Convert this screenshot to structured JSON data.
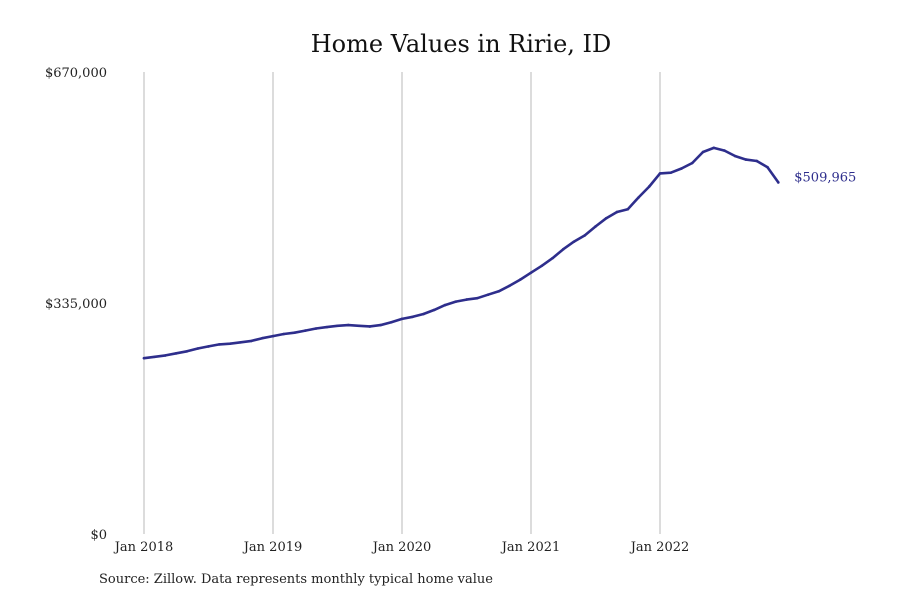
{
  "chart_data": {
    "type": "line",
    "title": "Home Values in Ririe, ID",
    "xlabel": "",
    "ylabel": "",
    "x_tick_labels": [
      "Jan 2018",
      "Jan 2019",
      "Jan 2020",
      "Jan 2021",
      "Jan 2022"
    ],
    "y_tick_labels": [
      "$670,000",
      "$335,000",
      "$0"
    ],
    "ylim": [
      0,
      670000
    ],
    "grid": "vertical",
    "line_color": "#2e2e8c",
    "end_label": "$509,965",
    "series": [
      {
        "x": [
          "2018-01",
          "2018-02",
          "2018-03",
          "2018-04",
          "2018-05",
          "2018-06",
          "2018-07",
          "2018-08",
          "2018-09",
          "2018-10",
          "2018-11",
          "2018-12",
          "2019-01",
          "2019-02",
          "2019-03",
          "2019-04",
          "2019-05",
          "2019-06",
          "2019-07",
          "2019-08",
          "2019-09",
          "2019-10",
          "2019-11",
          "2019-12",
          "2020-01",
          "2020-02",
          "2020-03",
          "2020-04",
          "2020-05",
          "2020-06",
          "2020-07",
          "2020-08",
          "2020-09",
          "2020-10",
          "2020-11",
          "2020-12",
          "2021-01",
          "2021-02",
          "2021-03",
          "2021-04",
          "2021-05",
          "2021-06",
          "2021-07",
          "2021-08",
          "2021-09",
          "2021-10",
          "2021-11",
          "2021-12",
          "2022-01",
          "2022-02",
          "2022-03",
          "2022-04",
          "2022-05",
          "2022-06",
          "2022-07",
          "2022-08",
          "2022-09",
          "2022-10",
          "2022-11",
          "2022-12"
        ],
        "values": [
          255000,
          257000,
          259000,
          262000,
          265000,
          269000,
          272000,
          275000,
          276000,
          278000,
          280000,
          284000,
          287000,
          290000,
          292000,
          295000,
          298000,
          300000,
          302000,
          303000,
          302000,
          301000,
          303000,
          307000,
          312000,
          315000,
          319000,
          325000,
          332000,
          337000,
          340000,
          342000,
          347000,
          352000,
          360000,
          369000,
          379000,
          389000,
          400000,
          413000,
          424000,
          433000,
          446000,
          458000,
          467000,
          471000,
          488000,
          504000,
          523000,
          524000,
          530000,
          538000,
          554000,
          560000,
          556000,
          548000,
          543000,
          541000,
          532000,
          509965
        ]
      }
    ]
  },
  "footer": {
    "source": "Source: Zillow. Data represents monthly typical home value"
  }
}
